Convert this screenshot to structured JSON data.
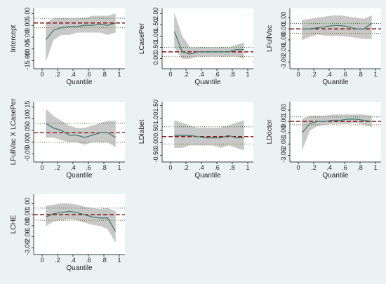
{
  "chart_data": [
    {
      "type": "line",
      "y_label": "Intercept",
      "x_label": "Quantile",
      "x": [
        0.05,
        0.15,
        0.25,
        0.35,
        0.45,
        0.55,
        0.65,
        0.75,
        0.85,
        0.95
      ],
      "values": [
        -6,
        -2,
        -1,
        -0.5,
        -0.5,
        0,
        0,
        0.5,
        0,
        1
      ],
      "band": {
        "lower": [
          -15,
          -6,
          -4,
          -4,
          -3,
          -3,
          -3,
          -3,
          -4,
          -3
        ],
        "upper": [
          1,
          3,
          3,
          3,
          3,
          3,
          4,
          4,
          4,
          5
        ],
        "color": "#c8c8c8"
      },
      "ols": {
        "value": 1,
        "lower": -1,
        "upper": 3,
        "color": "#800000",
        "ci_color": "#7a6a2a"
      },
      "color": "#3f7f6f",
      "xlim": [
        0,
        1
      ],
      "xticks": [
        0,
        {
          "value": 0.2,
          "label": ".2"
        },
        {
          "value": 0.4,
          "label": ".4"
        },
        {
          "value": 0.6,
          "label": ".6"
        },
        {
          "value": 0.8,
          "label": ".8"
        },
        1
      ],
      "ylim": [
        -16,
        6
      ],
      "yticks": [
        {
          "value": -15,
          "label": "-15.00"
        },
        {
          "value": -10,
          "label": "-10.00"
        },
        {
          "value": -5,
          "label": "-5.00"
        },
        {
          "value": 0,
          "label": "0.00"
        },
        {
          "value": 5,
          "label": "5.00"
        }
      ]
    },
    {
      "type": "line",
      "y_label": "LCasePer",
      "x_label": "Quantile",
      "x": [
        0.05,
        0.15,
        0.25,
        0.35,
        0.45,
        0.55,
        0.65,
        0.75,
        0.85,
        0.95
      ],
      "values": [
        1.2,
        0.3,
        0.2,
        0.3,
        0.3,
        0.3,
        0.3,
        0.3,
        0.4,
        0.4
      ],
      "band": {
        "lower": [
          0.5,
          0,
          0,
          0.1,
          0.1,
          0.1,
          0.1,
          0.1,
          0.1,
          0
        ],
        "upper": [
          2.0,
          1.0,
          0.5,
          0.5,
          0.5,
          0.5,
          0.5,
          0.5,
          0.6,
          0.7
        ],
        "color": "#c8c8c8"
      },
      "ols": {
        "value": 0.3,
        "lower": 0.1,
        "upper": 0.5,
        "color": "#800000",
        "ci_color": "#7a6a2a"
      },
      "color": "#3f7f6f",
      "xlim": [
        0,
        1
      ],
      "xticks": [
        0,
        {
          "value": 0.2,
          "label": ".2"
        },
        {
          "value": 0.4,
          "label": ".4"
        },
        {
          "value": 0.6,
          "label": ".6"
        },
        {
          "value": 0.8,
          "label": ".8"
        },
        1
      ],
      "ylim": [
        -0.2,
        2.1
      ],
      "yticks": [
        {
          "value": 0,
          "label": "0.00"
        },
        {
          "value": 0.5,
          "label": "0.50"
        },
        {
          "value": 1,
          "label": "1.00"
        },
        {
          "value": 1.5,
          "label": "1.50"
        },
        {
          "value": 2,
          "label": "2.00"
        }
      ]
    },
    {
      "type": "line",
      "y_label": "LFullVac",
      "x_label": "Quantile",
      "x": [
        0.05,
        0.15,
        0.25,
        0.35,
        0.45,
        0.55,
        0.65,
        0.75,
        0.85,
        0.95
      ],
      "values": [
        0,
        0,
        0.1,
        0.2,
        0.3,
        0.3,
        0.2,
        0,
        0,
        0.5
      ],
      "band": {
        "lower": [
          -1,
          -0.7,
          -0.5,
          -0.6,
          -0.6,
          -0.6,
          -0.7,
          -0.8,
          -0.9,
          -0.9
        ],
        "upper": [
          0.8,
          0.9,
          1.0,
          1.1,
          1.2,
          1.2,
          1.1,
          1.0,
          0.9,
          1.2
        ],
        "color": "#c8c8c8"
      },
      "ols": {
        "value": 0,
        "lower": -0.4,
        "upper": 0.5,
        "color": "#800000",
        "ci_color": "#7a6a2a"
      },
      "color": "#3f7f6f",
      "xlim": [
        0,
        1
      ],
      "xticks": [
        0,
        {
          "value": 0.2,
          "label": ".2"
        },
        {
          "value": 0.4,
          "label": ".4"
        },
        {
          "value": 0.6,
          "label": ".6"
        },
        {
          "value": 0.8,
          "label": ".8"
        },
        1
      ],
      "ylim": [
        -3.1,
        1.6
      ],
      "yticks": [
        {
          "value": -3,
          "label": "-3.00"
        },
        {
          "value": -2,
          "label": "-2.00"
        },
        {
          "value": -1,
          "label": "-1.00"
        },
        {
          "value": 0,
          "label": "0.00"
        },
        {
          "value": 1,
          "label": "1.00"
        }
      ]
    },
    {
      "type": "line",
      "y_label": "LFullVac X LCasePer",
      "x_label": "Quantile",
      "x": [
        0.05,
        0.15,
        0.25,
        0.35,
        0.45,
        0.55,
        0.65,
        0.75,
        0.85,
        0.95
      ],
      "values": [
        0.08,
        0.06,
        0.05,
        0.03,
        0.03,
        0.02,
        0.03,
        0.04,
        0.04,
        0.02
      ],
      "band": {
        "lower": [
          0.02,
          0.02,
          0.01,
          0,
          0,
          -0.01,
          0,
          0,
          0,
          -0.02
        ],
        "upper": [
          0.14,
          0.11,
          0.09,
          0.07,
          0.06,
          0.06,
          0.07,
          0.08,
          0.09,
          0.09
        ],
        "color": "#c8c8c8"
      },
      "ols": {
        "value": 0.04,
        "lower": 0,
        "upper": 0.08,
        "color": "#800000",
        "ci_color": "#7a6a2a"
      },
      "color": "#3f7f6f",
      "xlim": [
        0,
        1
      ],
      "xticks": [
        0,
        {
          "value": 0.2,
          "label": ".2"
        },
        {
          "value": 0.4,
          "label": ".4"
        },
        {
          "value": 0.6,
          "label": ".6"
        },
        {
          "value": 0.8,
          "label": ".8"
        },
        1
      ],
      "ylim": [
        -0.06,
        0.16
      ],
      "yticks": [
        {
          "value": -0.05,
          "label": "-0.05"
        },
        {
          "value": 0,
          "label": "0.00"
        },
        {
          "value": 0.05,
          "label": "0.05"
        },
        {
          "value": 0.1,
          "label": "0.10"
        },
        {
          "value": 0.15,
          "label": "0.15"
        }
      ]
    },
    {
      "type": "line",
      "y_label": "LDiabet",
      "x_label": "Quantile",
      "x": [
        0.05,
        0.15,
        0.25,
        0.35,
        0.45,
        0.55,
        0.65,
        0.75,
        0.85,
        0.95
      ],
      "values": [
        0.3,
        0.3,
        0.3,
        0.25,
        0.2,
        0.2,
        0.2,
        0.3,
        0.2,
        0.2
      ],
      "band": {
        "lower": [
          -0.2,
          -0.2,
          -0.1,
          -0.1,
          -0.1,
          -0.1,
          -0.2,
          -0.1,
          -0.2,
          -0.3
        ],
        "upper": [
          0.9,
          0.8,
          0.7,
          0.6,
          0.6,
          0.6,
          0.6,
          0.7,
          0.8,
          0.9
        ],
        "color": "#c8c8c8"
      },
      "ols": {
        "value": 0.25,
        "lower": -0.05,
        "upper": 0.65,
        "color": "#800000",
        "ci_color": "#7a6a2a"
      },
      "color": "#3f7f6f",
      "xlim": [
        0,
        1
      ],
      "xticks": [
        0,
        {
          "value": 0.2,
          "label": ".2"
        },
        {
          "value": 0.4,
          "label": ".4"
        },
        {
          "value": 0.6,
          "label": ".6"
        },
        {
          "value": 0.8,
          "label": ".8"
        },
        1
      ],
      "ylim": [
        -0.55,
        1.55
      ],
      "yticks": [
        {
          "value": -0.5,
          "label": "-0.50"
        },
        {
          "value": 0,
          "label": "0.00"
        },
        {
          "value": 0.5,
          "label": "0.50"
        },
        {
          "value": 1,
          "label": "1.00"
        },
        {
          "value": 1.5,
          "label": "1.50"
        }
      ]
    },
    {
      "type": "line",
      "y_label": "LDoctor",
      "x_label": "Quantile",
      "x": [
        0.05,
        0.15,
        0.25,
        0.35,
        0.45,
        0.55,
        0.65,
        0.75,
        0.85,
        0.95
      ],
      "values": [
        -1,
        -0.2,
        0,
        0,
        0.1,
        0.1,
        0.2,
        0.2,
        0.1,
        0
      ],
      "band": {
        "lower": [
          -2.5,
          -0.8,
          -0.4,
          -0.3,
          -0.2,
          -0.2,
          -0.2,
          -0.1,
          -0.3,
          -0.5
        ],
        "upper": [
          0.2,
          0.5,
          0.5,
          0.5,
          0.6,
          0.6,
          0.6,
          0.6,
          0.6,
          0.5
        ],
        "color": "#c8c8c8"
      },
      "ols": {
        "value": 0,
        "lower": -0.3,
        "upper": 0.4,
        "color": "#800000",
        "ci_color": "#7a6a2a"
      },
      "color": "#3f7f6f",
      "xlim": [
        0,
        1
      ],
      "xticks": [
        0,
        {
          "value": 0.2,
          "label": ".2"
        },
        {
          "value": 0.4,
          "label": ".4"
        },
        {
          "value": 0.6,
          "label": ".6"
        },
        {
          "value": 0.8,
          "label": ".8"
        },
        1
      ],
      "ylim": [
        -3.1,
        1.5
      ],
      "yticks": [
        {
          "value": -3,
          "label": "-3.00"
        },
        {
          "value": -2,
          "label": "-2.00"
        },
        {
          "value": -1,
          "label": "-1.00"
        },
        {
          "value": 0,
          "label": "0.00"
        },
        {
          "value": 1,
          "label": "1.00"
        }
      ]
    },
    {
      "type": "line",
      "y_label": "LCHE",
      "x_label": "Quantile",
      "x": [
        0.05,
        0.15,
        0.25,
        0.35,
        0.45,
        0.55,
        0.65,
        0.75,
        0.85,
        0.95
      ],
      "values": [
        -0.2,
        0.1,
        0.2,
        0.3,
        0.2,
        0,
        -0.2,
        -0.3,
        -0.3,
        -1.5
      ],
      "band": {
        "lower": [
          -1,
          -0.6,
          -0.5,
          -0.4,
          -0.5,
          -0.7,
          -0.9,
          -1,
          -1.3,
          -2.5
        ],
        "upper": [
          0.8,
          0.9,
          1.0,
          1.0,
          0.9,
          0.7,
          0.6,
          0.5,
          0.6,
          0.3
        ],
        "color": "#c8c8c8"
      },
      "ols": {
        "value": 0,
        "lower": -0.5,
        "upper": 0.6,
        "color": "#800000",
        "ci_color": "#7a6a2a"
      },
      "color": "#3f7f6f",
      "xlim": [
        0,
        1
      ],
      "xticks": [
        0,
        {
          "value": 0.2,
          "label": ".2"
        },
        {
          "value": 0.4,
          "label": ".4"
        },
        {
          "value": 0.6,
          "label": ".6"
        },
        {
          "value": 0.8,
          "label": ".8"
        },
        1
      ],
      "ylim": [
        -3.1,
        1.6
      ],
      "yticks": [
        {
          "value": -3,
          "label": "-3.00"
        },
        {
          "value": -2,
          "label": "-2.00"
        },
        {
          "value": -1,
          "label": "-1.00"
        },
        {
          "value": 0,
          "label": "0.00"
        },
        {
          "value": 1,
          "label": "1.00"
        }
      ]
    }
  ]
}
